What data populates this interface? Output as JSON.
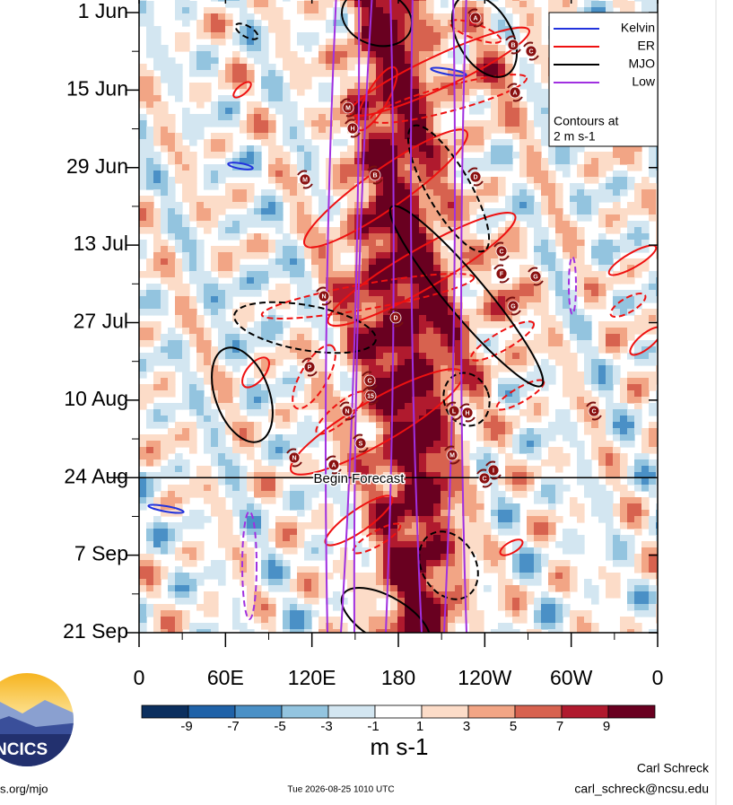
{
  "chart_data": {
    "type": "hovmoller",
    "y_categories": [
      "1 Jun",
      "15 Jun",
      "29 Jun",
      "13 Jul",
      "27 Jul",
      "10 Aug",
      "24 Aug",
      "7 Sep",
      "21 Sep"
    ],
    "xlim": [
      0,
      360
    ],
    "xticks": [
      0,
      {
        "value": 60,
        "label": "60E"
      },
      {
        "value": 120,
        "label": "120E"
      },
      180,
      {
        "value": 240,
        "label": "120W"
      },
      {
        "value": 300,
        "label": "60W"
      },
      {
        "value": 360,
        "label": "0"
      }
    ],
    "legend_entries": [
      {
        "name": "Kelvin",
        "color": "#2233dd"
      },
      {
        "name": "ER",
        "color": "#ee1111"
      },
      {
        "name": "MJO",
        "color": "#000000"
      },
      {
        "name": "Low",
        "color": "#a030e0"
      }
    ],
    "contour_note": [
      "Contours at",
      "2 m s-1"
    ],
    "forecast_label": "Begin Forecast",
    "forecast_start": "24 Aug",
    "colorbar": {
      "lim": [
        -11,
        11
      ],
      "ticks": [
        -9,
        -7,
        -5,
        -3,
        -1,
        1,
        3,
        5,
        7,
        9
      ],
      "colors": [
        "#0b2f5e",
        "#1f62a8",
        "#4a90c6",
        "#93c4df",
        "#d3e6f1",
        "#ffffff",
        "#fcdcc8",
        "#f2a585",
        "#d7624f",
        "#b01a2e",
        "#690020"
      ],
      "label": "m s-1"
    },
    "storms": [
      "A",
      "B",
      "C",
      "A",
      "M",
      "H",
      "M",
      "B",
      "D",
      "C",
      "F",
      "G",
      "N",
      "G",
      "D",
      "P",
      "C",
      "15",
      "N",
      "L",
      "H",
      "C",
      "S",
      "M",
      "N",
      "A",
      "I",
      "C"
    ],
    "footer": {
      "logo": "NCICS",
      "url": "s.org/mjo",
      "timestamp": "Tue 2026-08-25 1010 UTC",
      "author": "Carl Schreck",
      "email": "carl_schreck@ncsu.edu"
    }
  }
}
